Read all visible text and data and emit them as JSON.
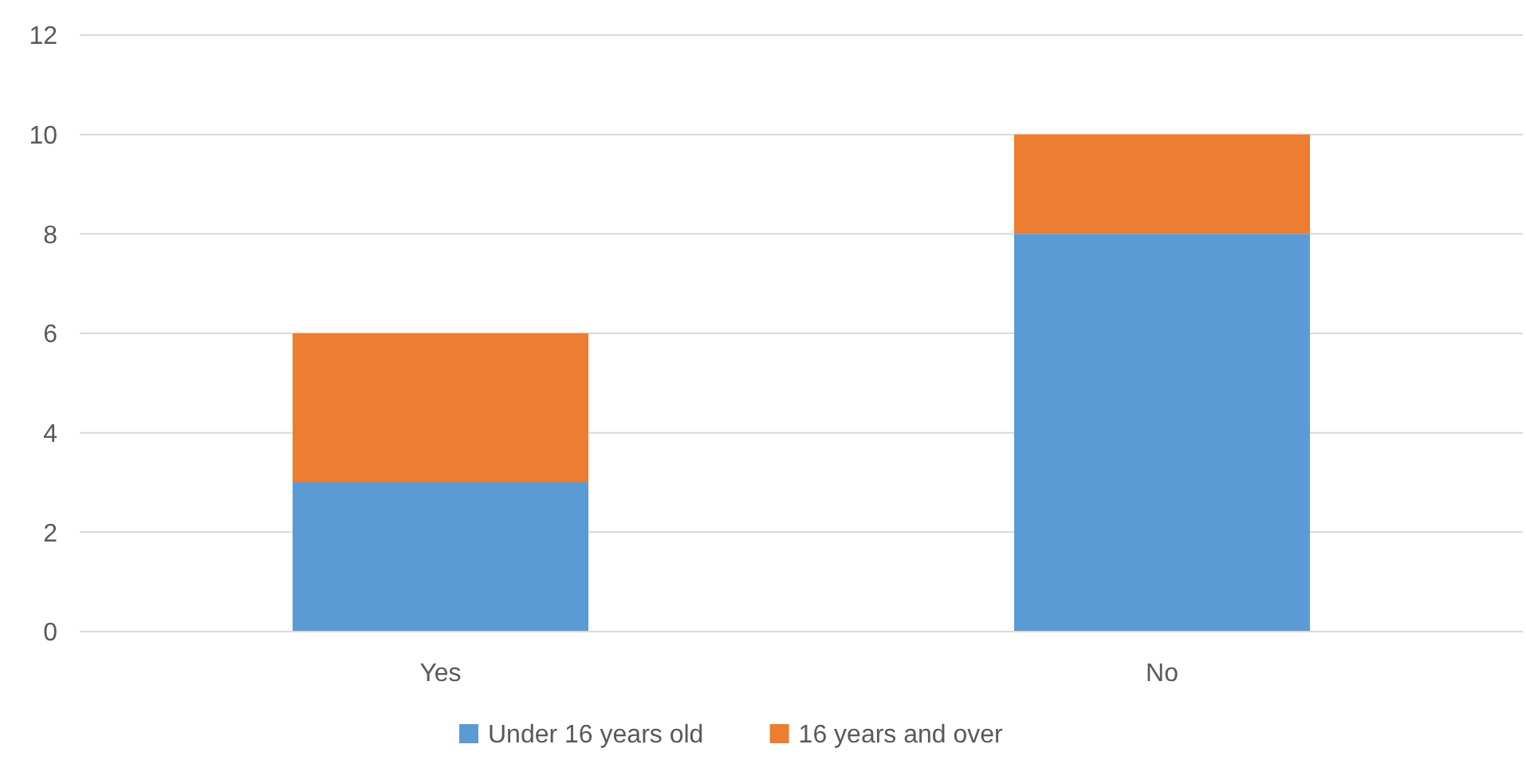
{
  "chart_data": {
    "type": "bar",
    "stacked": true,
    "categories": [
      "Yes",
      "No"
    ],
    "series": [
      {
        "name": "Under 16 years old",
        "color": "#5b9bd5",
        "values": [
          3,
          8
        ]
      },
      {
        "name": "16 years and over",
        "color": "#ed7d31",
        "values": [
          3,
          2
        ]
      }
    ],
    "ylim": [
      0,
      12
    ],
    "yticks": [
      0,
      2,
      4,
      6,
      8,
      10,
      12
    ],
    "grid": "y",
    "legend": "bottom"
  }
}
